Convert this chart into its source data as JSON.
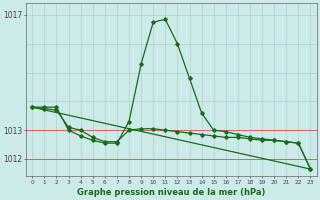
{
  "title": "Graphe pression niveau de la mer (hPa)",
  "bg_color": "#cceae8",
  "grid_color": "#aad4d2",
  "line_color": "#1a6b1a",
  "marker_color": "#1a6b1a",
  "xlim": [
    -0.5,
    23.5
  ],
  "ylim": [
    1011.4,
    1017.4
  ],
  "ytick_vals": [
    1012,
    1013,
    1017
  ],
  "ytick_labels": [
    "1012",
    "1013",
    "1017"
  ],
  "xticks": [
    0,
    1,
    2,
    3,
    4,
    5,
    6,
    7,
    8,
    9,
    10,
    11,
    12,
    13,
    14,
    15,
    16,
    17,
    18,
    19,
    20,
    21,
    22,
    23
  ],
  "red_hlines": [
    1012,
    1013
  ],
  "series1_x": [
    0,
    1,
    2,
    3,
    4,
    5,
    6,
    7,
    8,
    9,
    10,
    11,
    12,
    13,
    14,
    15,
    16,
    17,
    18,
    19,
    20,
    21,
    22,
    23
  ],
  "series1_y": [
    1013.8,
    1013.8,
    1013.8,
    1013.0,
    1012.8,
    1012.65,
    1012.55,
    1012.55,
    1013.3,
    1015.3,
    1016.75,
    1016.85,
    1016.0,
    1014.8,
    1013.6,
    1013.0,
    1012.95,
    1012.85,
    1012.75,
    1012.7,
    1012.65,
    1012.6,
    1012.55,
    1011.65
  ],
  "series2_x": [
    0,
    23
  ],
  "series2_y": [
    1013.8,
    1011.65
  ],
  "series3_x": [
    0,
    1,
    2,
    3,
    4,
    5,
    6,
    7,
    8,
    9,
    10,
    11,
    12,
    13,
    14,
    15,
    16,
    17,
    18,
    19,
    20,
    21,
    22,
    23
  ],
  "series3_y": [
    1013.8,
    1013.75,
    1013.7,
    1013.1,
    1013.0,
    1012.75,
    1012.6,
    1012.6,
    1013.0,
    1013.05,
    1013.05,
    1013.0,
    1012.95,
    1012.9,
    1012.85,
    1012.8,
    1012.75,
    1012.75,
    1012.7,
    1012.65,
    1012.65,
    1012.6,
    1012.55,
    1011.65
  ]
}
